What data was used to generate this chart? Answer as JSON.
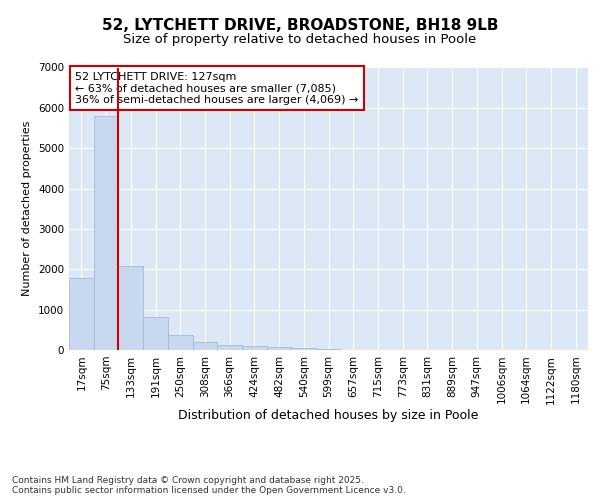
{
  "title": "52, LYTCHETT DRIVE, BROADSTONE, BH18 9LB",
  "subtitle": "Size of property relative to detached houses in Poole",
  "xlabel": "Distribution of detached houses by size in Poole",
  "ylabel": "Number of detached properties",
  "categories": [
    "17sqm",
    "75sqm",
    "133sqm",
    "191sqm",
    "250sqm",
    "308sqm",
    "366sqm",
    "424sqm",
    "482sqm",
    "540sqm",
    "599sqm",
    "657sqm",
    "715sqm",
    "773sqm",
    "831sqm",
    "889sqm",
    "947sqm",
    "1006sqm",
    "1064sqm",
    "1122sqm",
    "1180sqm"
  ],
  "values": [
    1780,
    5800,
    2080,
    820,
    370,
    210,
    130,
    95,
    75,
    55,
    20,
    10,
    5,
    0,
    0,
    0,
    0,
    0,
    0,
    0,
    0
  ],
  "bar_color": "#c8d8ee",
  "bar_edge_color": "#a0bcda",
  "vline_x_index": 2,
  "vline_color": "#cc0000",
  "annotation_text": "52 LYTCHETT DRIVE: 127sqm\n← 63% of detached houses are smaller (7,085)\n36% of semi-detached houses are larger (4,069) →",
  "annotation_box_color": "#ffffff",
  "annotation_box_edge_color": "#cc0000",
  "ylim": [
    0,
    7000
  ],
  "yticks": [
    0,
    1000,
    2000,
    3000,
    4000,
    5000,
    6000,
    7000
  ],
  "background_color": "#dce8f5",
  "grid_color": "#ffffff",
  "footer_text": "Contains HM Land Registry data © Crown copyright and database right 2025.\nContains public sector information licensed under the Open Government Licence v3.0.",
  "title_fontsize": 11,
  "subtitle_fontsize": 9.5,
  "xlabel_fontsize": 9,
  "ylabel_fontsize": 8,
  "tick_fontsize": 7.5,
  "annotation_fontsize": 8,
  "footer_fontsize": 6.5
}
